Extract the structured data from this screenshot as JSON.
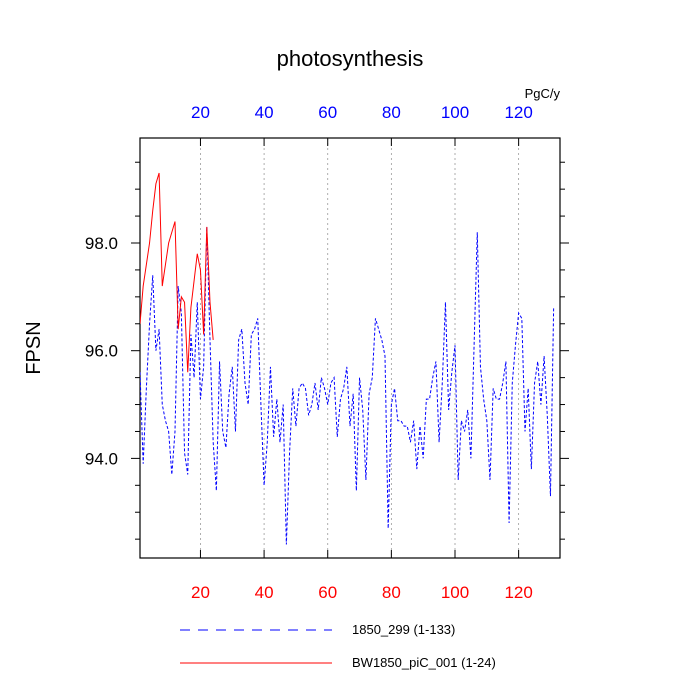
{
  "chart_data": {
    "type": "line",
    "title": "photosynthesis",
    "ylabel": "FPSN",
    "units_label": "PgC/y",
    "xlim": [
      1,
      133
    ],
    "ylim": [
      92.15,
      99.95
    ],
    "x_ticks": [
      20,
      40,
      60,
      80,
      100,
      120
    ],
    "x_tick_labels": [
      "20",
      "40",
      "60",
      "80",
      "100",
      "120"
    ],
    "y_ticks": [
      94.0,
      96.0,
      98.0
    ],
    "y_tick_labels": [
      "94.0",
      "96.0",
      "98.0"
    ],
    "y_minor_ticks": [
      92.5,
      93.0,
      93.5,
      94.5,
      95.0,
      95.5,
      96.5,
      97.0,
      97.5,
      98.5,
      99.0,
      99.5
    ],
    "grid": "vertical-dotted",
    "colors": {
      "bottom_ticks": "#ff0000",
      "top_ticks": "#0000ff",
      "axis": "#000000",
      "grid": "#9a9a9a"
    },
    "series": [
      {
        "name": "1850_299 (1-133)",
        "color": "#0000ff",
        "dash": "dashed",
        "x_start": 1,
        "values": [
          95.6,
          93.9,
          95.3,
          96.5,
          97.4,
          96.0,
          96.4,
          95.0,
          94.7,
          94.5,
          93.7,
          94.5,
          97.2,
          96.7,
          94.1,
          93.7,
          96.3,
          95.5,
          96.9,
          95.1,
          95.7,
          98.3,
          96.2,
          94.3,
          93.4,
          95.8,
          94.5,
          94.2,
          95.2,
          95.7,
          94.5,
          96.2,
          96.4,
          95.4,
          95.0,
          96.3,
          96.4,
          96.6,
          95.0,
          93.5,
          94.3,
          95.7,
          94.4,
          95.1,
          94.3,
          95.0,
          92.4,
          94.1,
          95.3,
          94.6,
          95.3,
          95.4,
          95.3,
          94.8,
          95.0,
          95.4,
          94.9,
          95.5,
          95.3,
          95.0,
          95.4,
          95.5,
          94.4,
          95.1,
          95.3,
          95.7,
          94.6,
          95.2,
          93.4,
          95.5,
          94.9,
          93.6,
          95.2,
          95.5,
          96.6,
          96.4,
          96.2,
          95.9,
          92.7,
          95.0,
          95.3,
          94.7,
          94.7,
          94.6,
          94.6,
          94.3,
          94.7,
          93.8,
          94.6,
          94.0,
          95.1,
          95.1,
          95.5,
          95.8,
          94.3,
          95.4,
          96.9,
          94.9,
          95.6,
          96.1,
          93.6,
          94.7,
          94.5,
          94.9,
          94.0,
          96.1,
          98.2,
          95.7,
          95.1,
          94.7,
          93.6,
          95.3,
          95.1,
          95.1,
          95.4,
          95.8,
          92.8,
          95.4,
          96.1,
          96.7,
          96.6,
          94.5,
          95.3,
          93.8,
          95.4,
          95.8,
          95.0,
          95.9,
          94.8,
          93.3,
          96.8
        ]
      },
      {
        "name": "BW1850_piC_001 (1-24)",
        "color": "#ff0000",
        "dash": "solid",
        "x_start": 1,
        "values": [
          96.5,
          97.2,
          97.6,
          98.0,
          98.6,
          99.1,
          99.3,
          97.2,
          97.6,
          98.0,
          98.2,
          98.4,
          96.4,
          97.0,
          96.9,
          95.6,
          96.8,
          97.3,
          97.8,
          97.5,
          96.3,
          98.3,
          96.9,
          96.2
        ]
      }
    ],
    "legend": {
      "placement": "bottom"
    }
  }
}
